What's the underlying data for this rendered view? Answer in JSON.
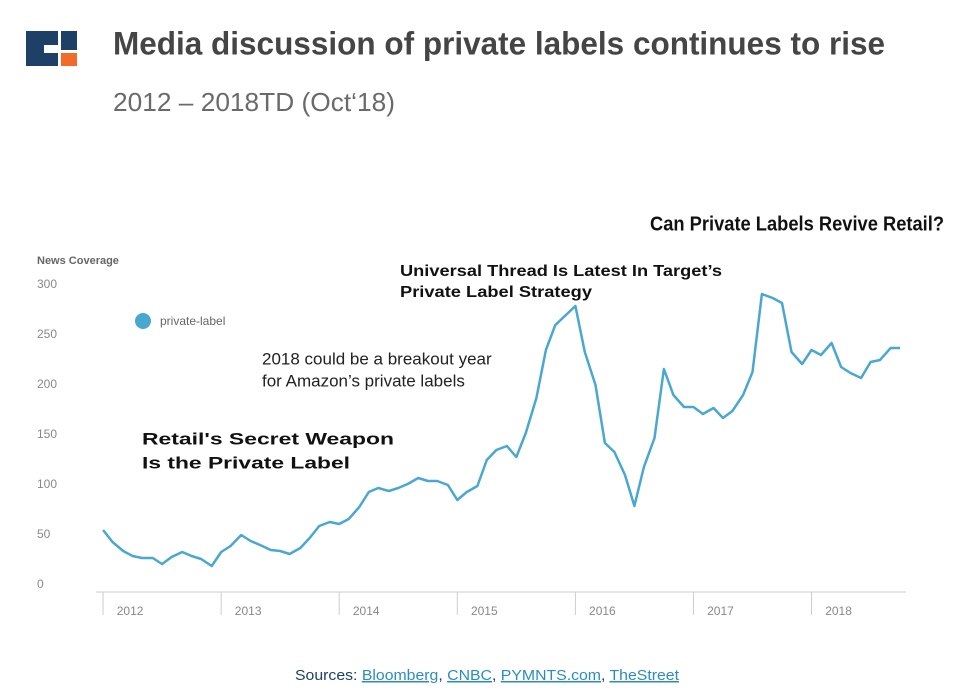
{
  "header": {
    "title": "Media discussion of private labels continues to rise",
    "subtitle": "2012 – 2018TD (Oct‘18)"
  },
  "chart_data": {
    "type": "line",
    "y_label": "News Coverage",
    "series": [
      {
        "name": "private-label",
        "color": "#4aa8d0",
        "x": [
          2012.0,
          2012.08,
          2012.17,
          2012.25,
          2012.33,
          2012.42,
          2012.5,
          2012.58,
          2012.67,
          2012.75,
          2012.83,
          2012.92,
          2013.0,
          2013.08,
          2013.17,
          2013.25,
          2013.33,
          2013.42,
          2013.5,
          2013.58,
          2013.67,
          2013.75,
          2013.83,
          2013.92,
          2014.0,
          2014.08,
          2014.17,
          2014.25,
          2014.33,
          2014.42,
          2014.5,
          2014.58,
          2014.67,
          2014.75,
          2014.83,
          2014.92,
          2015.0,
          2015.08,
          2015.17,
          2015.25,
          2015.33,
          2015.42,
          2015.5,
          2015.58,
          2015.67,
          2015.75,
          2015.83,
          2015.92,
          2016.0,
          2016.08,
          2016.17,
          2016.25,
          2016.33,
          2016.42,
          2016.5,
          2016.58,
          2016.67,
          2016.75,
          2016.83,
          2016.92,
          2017.0,
          2017.08,
          2017.17,
          2017.25,
          2017.33,
          2017.42,
          2017.5,
          2017.58,
          2017.67,
          2017.75,
          2017.83,
          2017.92,
          2018.0,
          2018.08,
          2018.17,
          2018.25,
          2018.33,
          2018.42,
          2018.5,
          2018.58,
          2018.67,
          2018.75
        ],
        "values": [
          55,
          43,
          34,
          29,
          27,
          27,
          21,
          28,
          33,
          29,
          26,
          19,
          33,
          39,
          50,
          44,
          40,
          35,
          34,
          31,
          37,
          47,
          59,
          63,
          61,
          66,
          78,
          93,
          97,
          94,
          97,
          101,
          107,
          104,
          104,
          100,
          85,
          93,
          99,
          125,
          135,
          139,
          128,
          152,
          187,
          235,
          260,
          270,
          279,
          233,
          200,
          142,
          133,
          110,
          79,
          118,
          147,
          216,
          190,
          178,
          178,
          171,
          177,
          167,
          174,
          190,
          213,
          291,
          287,
          282,
          233,
          221,
          235,
          230,
          242,
          218,
          212,
          207,
          223,
          225,
          237,
          237
        ]
      }
    ],
    "xlim": [
      2011.94,
      2018.8
    ],
    "xticks": [
      {
        "value": 2012,
        "label": "2012"
      },
      {
        "value": 2013,
        "label": "2013"
      },
      {
        "value": 2014,
        "label": "2014"
      },
      {
        "value": 2015,
        "label": "2015"
      },
      {
        "value": 2016,
        "label": "2016"
      },
      {
        "value": 2017,
        "label": "2017"
      },
      {
        "value": 2018,
        "label": "2018"
      }
    ],
    "ylim": [
      0,
      300
    ],
    "yticks": [
      0,
      50,
      100,
      150,
      200,
      250,
      300
    ],
    "grid": false,
    "legend": "top-left",
    "annotations": [
      {
        "lines": [
          "Can Private Labels Revive Retail?"
        ]
      },
      {
        "lines": [
          "Universal Thread Is Latest In Target’s",
          "Private Label Strategy"
        ]
      },
      {
        "lines": [
          "2018 could be a breakout year",
          "for Amazon’s private labels"
        ]
      },
      {
        "lines": [
          "Retail's Secret Weapon",
          "Is the Private Label"
        ]
      }
    ]
  },
  "footer": {
    "label": "Sources:",
    "links": [
      "Bloomberg",
      "CNBC",
      "PYMNTS.com",
      "TheStreet"
    ]
  }
}
